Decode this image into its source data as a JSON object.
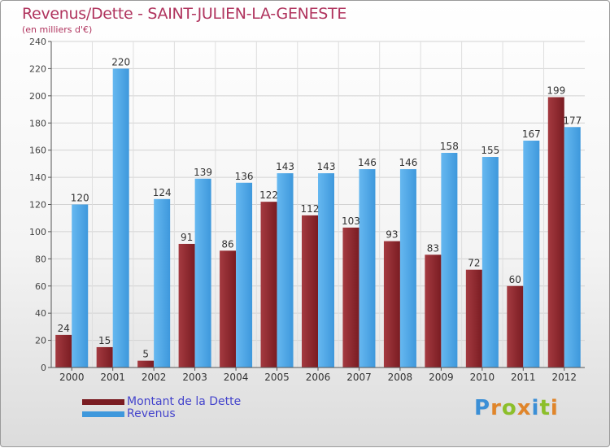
{
  "title": "Revenus/Dette - SAINT-JULIEN-LA-GENESTE",
  "subtitle": "(en milliers d'€)",
  "legend": {
    "debt_label": "Montant de la Dette",
    "revenue_label": "Revenus"
  },
  "logo": {
    "text": "Proxiti"
  },
  "colors": {
    "debt": "#7a1c22",
    "debt_light": "#a43a40",
    "revenue": "#3e98dc",
    "revenue_light": "#66b8f0",
    "title": "#b0345e",
    "legend_text": "#4444cc"
  },
  "chart_data": {
    "type": "bar",
    "title": "Revenus/Dette - SAINT-JULIEN-LA-GENESTE",
    "ylabel": "(en milliers d'€)",
    "xlabel": "",
    "categories": [
      "2000",
      "2001",
      "2002",
      "2003",
      "2004",
      "2005",
      "2006",
      "2007",
      "2008",
      "2009",
      "2010",
      "2011",
      "2012"
    ],
    "series": [
      {
        "name": "Montant de la Dette",
        "values": [
          24,
          15,
          5,
          91,
          86,
          122,
          112,
          103,
          93,
          83,
          72,
          60,
          199
        ]
      },
      {
        "name": "Revenus",
        "values": [
          120,
          220,
          124,
          139,
          136,
          143,
          143,
          146,
          146,
          158,
          155,
          167,
          177
        ]
      }
    ],
    "ylim": [
      0,
      240
    ],
    "yticks": [
      0,
      20,
      40,
      60,
      80,
      100,
      120,
      140,
      160,
      180,
      200,
      220,
      240
    ],
    "grid": true,
    "legend_position": "bottom-left"
  }
}
